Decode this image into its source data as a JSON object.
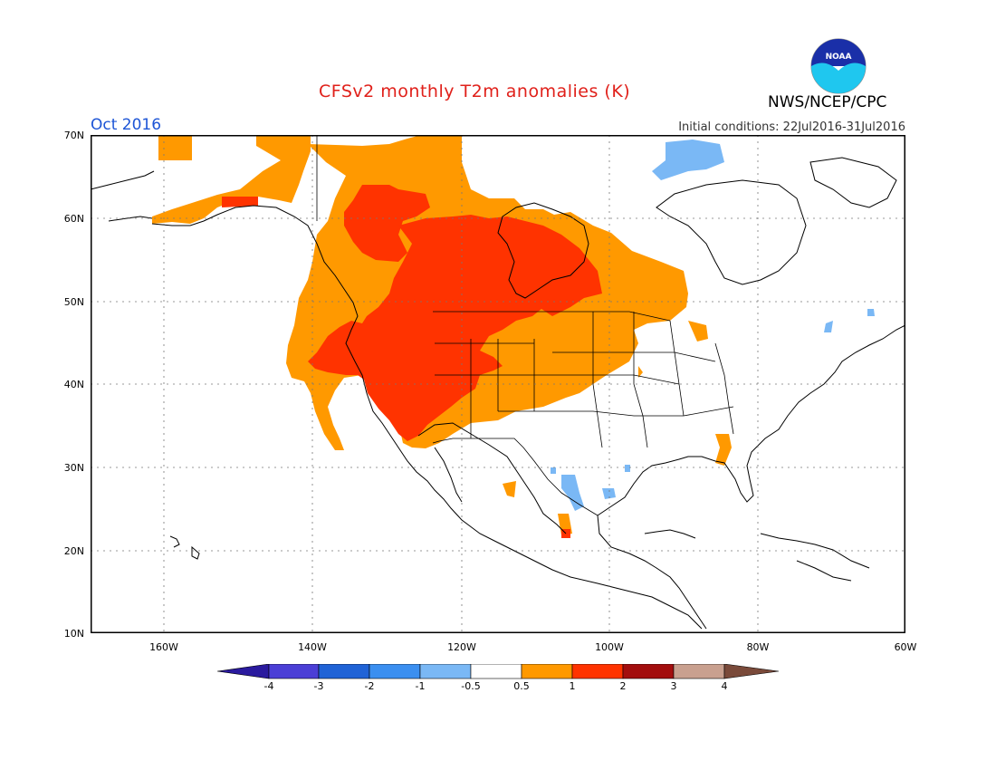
{
  "title": "CFSv2 monthly T2m anomalies (K)",
  "month": "Oct 2016",
  "agency": "NWS/NCEP/CPC",
  "initial_conditions": "Initial conditions: 22Jul2016-31Jul2016",
  "logo_text": "NOAA",
  "lat_labels": [
    "70N",
    "60N",
    "50N",
    "40N",
    "30N",
    "20N",
    "10N"
  ],
  "lon_labels": [
    "160W",
    "140W",
    "120W",
    "100W",
    "80W",
    "60W"
  ],
  "colorbar": {
    "labels": [
      "-4",
      "-3",
      "-2",
      "-1",
      "-0.5",
      "0.5",
      "1",
      "2",
      "3",
      "4"
    ],
    "colors": [
      "#2a1a9e",
      "#4b3fd6",
      "#2063d6",
      "#3b8ff0",
      "#7ab8f5",
      "#ffffff",
      "#ff9900",
      "#ff3300",
      "#a30e0e",
      "#c9a08f",
      "#7a4a3a"
    ]
  },
  "anomaly_colors": {
    "warm_0.5_1": "#ff9900",
    "warm_1_2": "#ff3300",
    "cool_-1_-0.5": "#7ab8f5"
  }
}
